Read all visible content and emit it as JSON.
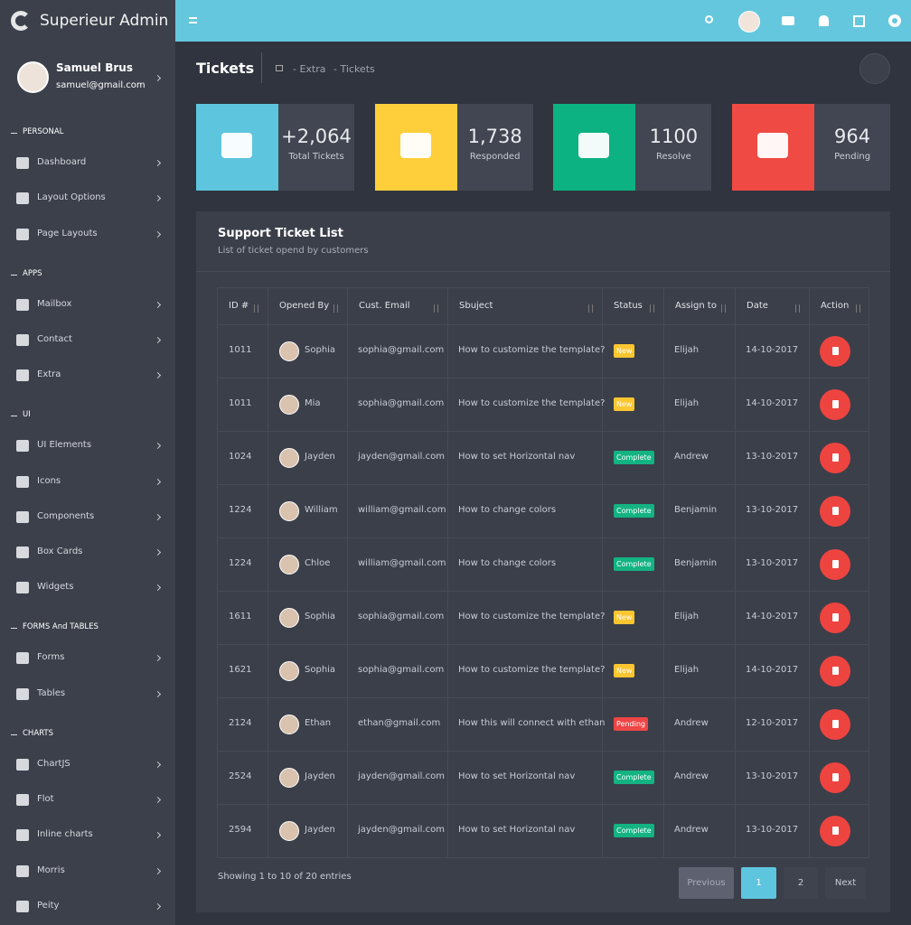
{
  "brand": "Superieur Admin",
  "user": {
    "name": "Samuel Brus",
    "email": "samuel@gmail.com"
  },
  "nav": [
    {
      "section": "PERSONAL",
      "items": [
        "Dashboard",
        "Layout Options",
        "Page Layouts"
      ]
    },
    {
      "section": "APPS",
      "items": [
        "Mailbox",
        "Contact",
        "Extra"
      ]
    },
    {
      "section": "UI",
      "items": [
        "UI Elements",
        "Icons",
        "Components",
        "Box Cards",
        "Widgets"
      ]
    },
    {
      "section": "FORMS And TABLES",
      "items": [
        "Forms",
        "Tables"
      ]
    },
    {
      "section": "CHARTS",
      "items": [
        "ChartJS",
        "Flot",
        "Inline charts",
        "Morris",
        "Peity"
      ]
    }
  ],
  "page": {
    "title": "Tickets",
    "breadcrumb": [
      "- Extra",
      "- Tickets"
    ]
  },
  "stats": [
    {
      "value": "+2,064",
      "label": "Total Tickets",
      "color": "#5ec5de"
    },
    {
      "value": "1,738",
      "label": "Responded",
      "color": "#ffcf3b"
    },
    {
      "value": "1100",
      "label": "Resolve",
      "color": "#0db282"
    },
    {
      "value": "964",
      "label": "Pending",
      "color": "#ef4a43"
    }
  ],
  "table": {
    "title": "Support Ticket List",
    "subtitle": "List of ticket opend by customers",
    "columns": [
      "ID #",
      "Opened By",
      "Cust. Email",
      "Sbuject",
      "Status",
      "Assign to",
      "Date",
      "Action"
    ],
    "rows": [
      [
        "1011",
        "Sophia",
        "sophia@gmail.com",
        "How to customize the template?",
        "New",
        "Elijah",
        "14-10-2017"
      ],
      [
        "1011",
        "Mia",
        "sophia@gmail.com",
        "How to customize the template?",
        "New",
        "Elijah",
        "14-10-2017"
      ],
      [
        "1024",
        "Jayden",
        "jayden@gmail.com",
        "How to set Horizontal nav",
        "Complete",
        "Andrew",
        "13-10-2017"
      ],
      [
        "1224",
        "William",
        "william@gmail.com",
        "How to change colors",
        "Complete",
        "Benjamin",
        "13-10-2017"
      ],
      [
        "1224",
        "Chloe",
        "william@gmail.com",
        "How to change colors",
        "Complete",
        "Benjamin",
        "13-10-2017"
      ],
      [
        "1611",
        "Sophia",
        "sophia@gmail.com",
        "How to customize the template?",
        "New",
        "Elijah",
        "14-10-2017"
      ],
      [
        "1621",
        "Sophia",
        "sophia@gmail.com",
        "How to customize the template?",
        "New",
        "Elijah",
        "14-10-2017"
      ],
      [
        "2124",
        "Ethan",
        "ethan@gmail.com",
        "How this will connect with ethan",
        "Pending",
        "Andrew",
        "12-10-2017"
      ],
      [
        "2524",
        "Jayden",
        "jayden@gmail.com",
        "How to set Horizontal nav",
        "Complete",
        "Andrew",
        "13-10-2017"
      ],
      [
        "2594",
        "Jayden",
        "jayden@gmail.com",
        "How to set Horizontal nav",
        "Complete",
        "Andrew",
        "13-10-2017"
      ]
    ],
    "status_colors": {
      "New": "#fcc630",
      "Complete": "#13b382",
      "Pending": "#ee4545"
    }
  },
  "footer": {
    "info": "Showing 1 to 10 of 20 entries",
    "pagination": [
      "Previous",
      "1",
      "2",
      "Next"
    ]
  }
}
